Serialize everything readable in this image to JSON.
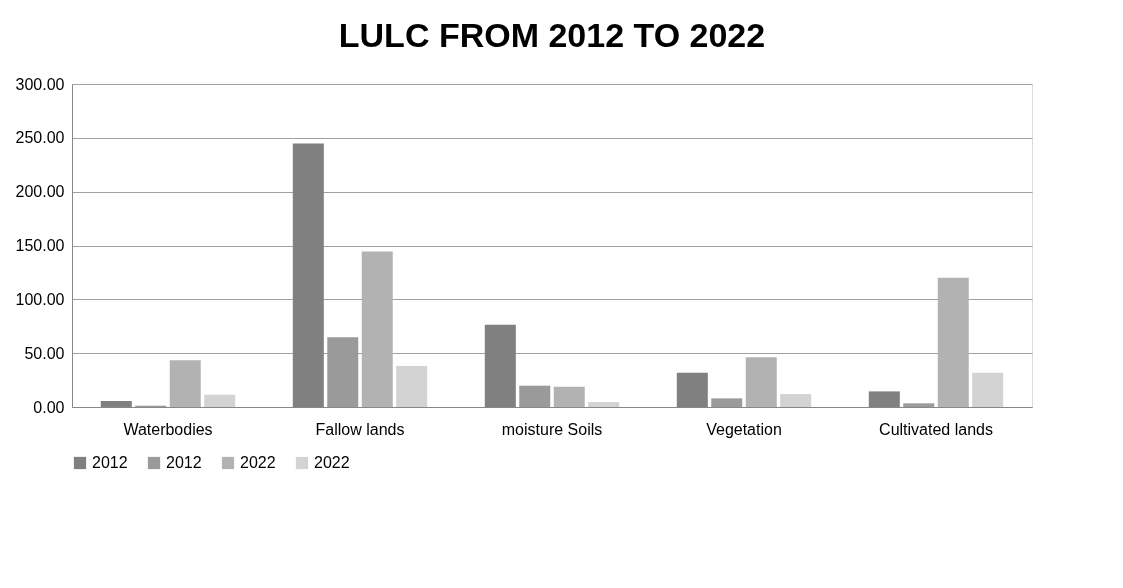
{
  "chart_data": {
    "type": "bar",
    "title": "LULC FROM 2012 TO 2022",
    "categories": [
      "Waterbodies",
      "Fallow lands",
      "moisture Soils",
      "Vegetation",
      "Cultivated lands"
    ],
    "series": [
      {
        "name": "2012",
        "color": "#808080",
        "values": [
          5.6,
          244.7,
          76.5,
          31.8,
          14.5
        ]
      },
      {
        "name": "2012",
        "color": "#9a9a9a",
        "values": [
          1.2,
          64.8,
          19.8,
          8.0,
          3.4
        ]
      },
      {
        "name": "2022",
        "color": "#b2b2b2",
        "values": [
          43.5,
          144.4,
          18.8,
          46.3,
          120.0
        ]
      },
      {
        "name": "2022",
        "color": "#d3d3d3",
        "values": [
          11.4,
          38.0,
          4.6,
          12.0,
          31.8
        ]
      }
    ],
    "ylim": [
      0,
      300
    ],
    "yticks": [
      {
        "value": 0,
        "label": "0.00"
      },
      {
        "value": 50,
        "label": "50.00"
      },
      {
        "value": 100,
        "label": "100.00"
      },
      {
        "value": 150,
        "label": "150.00"
      },
      {
        "value": 200,
        "label": "200.00"
      },
      {
        "value": 250,
        "label": "250.00"
      },
      {
        "value": 300,
        "label": "300.00"
      }
    ],
    "grid": "y",
    "legend": "bottom"
  }
}
